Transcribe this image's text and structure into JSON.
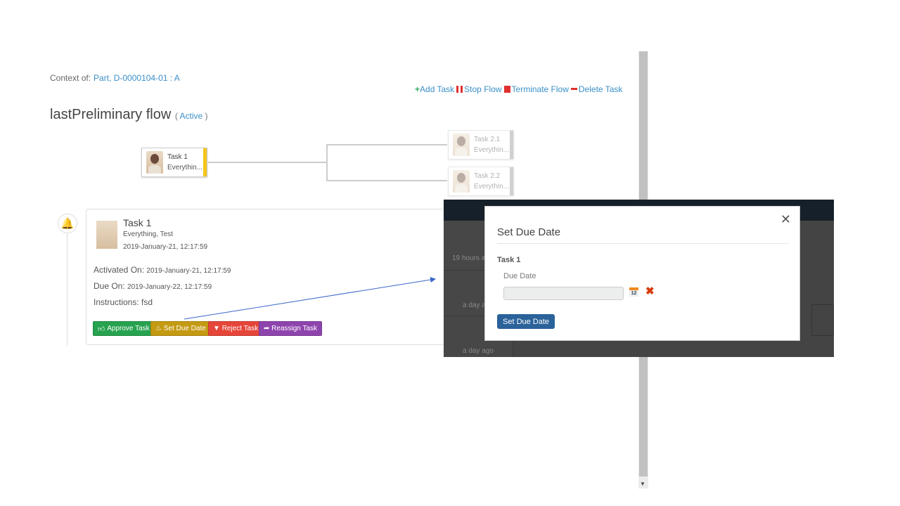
{
  "context": {
    "label": "Context of:",
    "value": "Part, D-0000104-01 : A"
  },
  "actions": [
    {
      "label": "Add Task",
      "icon": "plus-icon",
      "color": "#2eaa55"
    },
    {
      "label": "Stop Flow",
      "icon": "pause-icon",
      "color": "#e03030"
    },
    {
      "label": "Terminate Flow",
      "icon": "stop-icon",
      "color": "#e03030"
    },
    {
      "label": "Delete Task",
      "icon": "minus-icon",
      "color": "#e03030"
    }
  ],
  "flow": {
    "title": "lastPreliminary flow",
    "status": "Active",
    "open": "(",
    "close": ")"
  },
  "nodes": [
    {
      "name": "Task 1",
      "assignee": "Everythin..."
    },
    {
      "name": "Task 2.1",
      "assignee": "Everythin..."
    },
    {
      "name": "Task 2.2",
      "assignee": "Everythin..."
    }
  ],
  "card": {
    "title": "Task 1",
    "assignee": "Everything, Test",
    "created": "2019-January-21, 12:17:59",
    "activated_label": "Activated On:",
    "activated": "2019-January-21, 12:17:59",
    "due_label": "Due On:",
    "due": "2019-January-22, 12:17:59",
    "instructions_label": "Instructions:",
    "instructions": "fsd",
    "buttons": [
      {
        "label": "Approve Task",
        "color": "#27a24f"
      },
      {
        "label": "Set Due Date",
        "color": "#c49a13"
      },
      {
        "label": "Reject Task",
        "color": "#e64539"
      },
      {
        "label": "Reassign Task",
        "color": "#8e44ad"
      }
    ]
  },
  "background_times": [
    "19 hours a",
    "a day a",
    "a day ago"
  ],
  "modal": {
    "title": "Set Due Date",
    "task": "Task 1",
    "field_label": "Due Date",
    "field_value": "",
    "calendar_day": "12",
    "submit": "Set Due Date"
  }
}
